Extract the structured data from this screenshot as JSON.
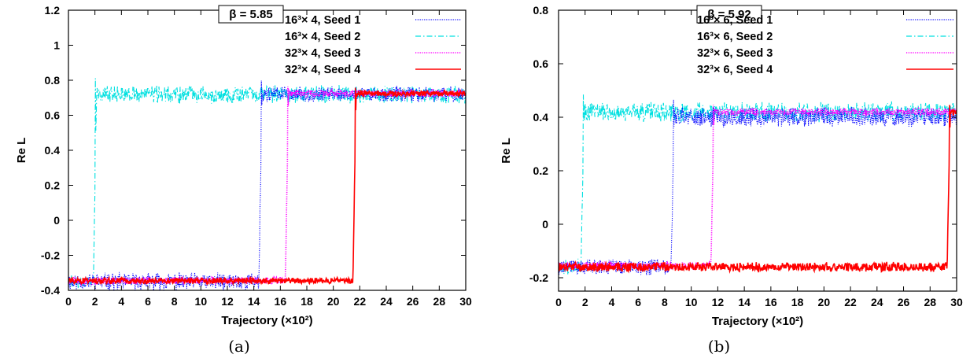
{
  "chart_data": [
    {
      "type": "line",
      "caption": "(a)",
      "annotation": "β = 5.85",
      "xlabel": "Trajectory (×10²)",
      "ylabel": "Re L",
      "xlim": [
        0,
        30
      ],
      "ylim": [
        -0.4,
        1.2
      ],
      "xticks": [
        0,
        2,
        4,
        6,
        8,
        10,
        12,
        14,
        16,
        18,
        20,
        22,
        24,
        26,
        28,
        30
      ],
      "yticks": [
        "-0.4",
        "-0.2",
        "0",
        "0.2",
        "0.4",
        "0.6",
        "0.8",
        "1",
        "1.2"
      ],
      "grid": false,
      "legend_position": "top-right",
      "series": [
        {
          "name": "16³× 4, Seed 1",
          "color": "#0000ff",
          "style": "dotted",
          "low": -0.35,
          "high": 0.72,
          "transition_x": 14.5,
          "low_noise": 0.07,
          "high_noise": 0.06
        },
        {
          "name": "16³× 4, Seed 2",
          "color": "#00e0e0",
          "style": "dashdot",
          "low": -0.35,
          "high": 0.72,
          "transition_x": 2.0,
          "low_noise": 0.05,
          "high_noise": 0.07
        },
        {
          "name": "32³× 4, Seed 3",
          "color": "#ff00ff",
          "style": "dotted",
          "low": -0.345,
          "high": 0.725,
          "transition_x": 16.5,
          "low_noise": 0.03,
          "high_noise": 0.03
        },
        {
          "name": "32³× 4, Seed 4",
          "color": "#ff0000",
          "style": "solid",
          "low": -0.345,
          "high": 0.725,
          "transition_x": 21.6,
          "low_noise": 0.025,
          "high_noise": 0.025
        }
      ]
    },
    {
      "type": "line",
      "caption": "(b)",
      "annotation": "β = 5.92",
      "xlabel": "Trajectory (×10²)",
      "ylabel": "Re L",
      "xlim": [
        0,
        30
      ],
      "ylim": [
        -0.25,
        0.8
      ],
      "xticks": [
        0,
        2,
        4,
        6,
        8,
        10,
        12,
        14,
        16,
        18,
        20,
        22,
        24,
        26,
        28,
        30
      ],
      "yticks": [
        "-0.2",
        "0",
        "0.2",
        "0.4",
        "0.6",
        "0.8"
      ],
      "grid": false,
      "legend_position": "top-right",
      "series": [
        {
          "name": "16³× 6, Seed 1",
          "color": "#0000ff",
          "style": "dotted",
          "low": -0.16,
          "high": 0.4,
          "transition_x": 8.6,
          "low_noise": 0.04,
          "high_noise": 0.05
        },
        {
          "name": "16³× 6, Seed 2",
          "color": "#00e0e0",
          "style": "dashdot",
          "low": -0.16,
          "high": 0.42,
          "transition_x": 1.8,
          "low_noise": 0.04,
          "high_noise": 0.05
        },
        {
          "name": "32³× 6, Seed 3",
          "color": "#ff00ff",
          "style": "dotted",
          "low": -0.155,
          "high": 0.42,
          "transition_x": 11.6,
          "low_noise": 0.02,
          "high_noise": 0.02
        },
        {
          "name": "32³× 6, Seed 4",
          "color": "#ff0000",
          "style": "solid",
          "low": -0.16,
          "high": 0.42,
          "transition_x": 29.4,
          "low_noise": 0.025,
          "high_noise": 0.02
        }
      ]
    }
  ]
}
